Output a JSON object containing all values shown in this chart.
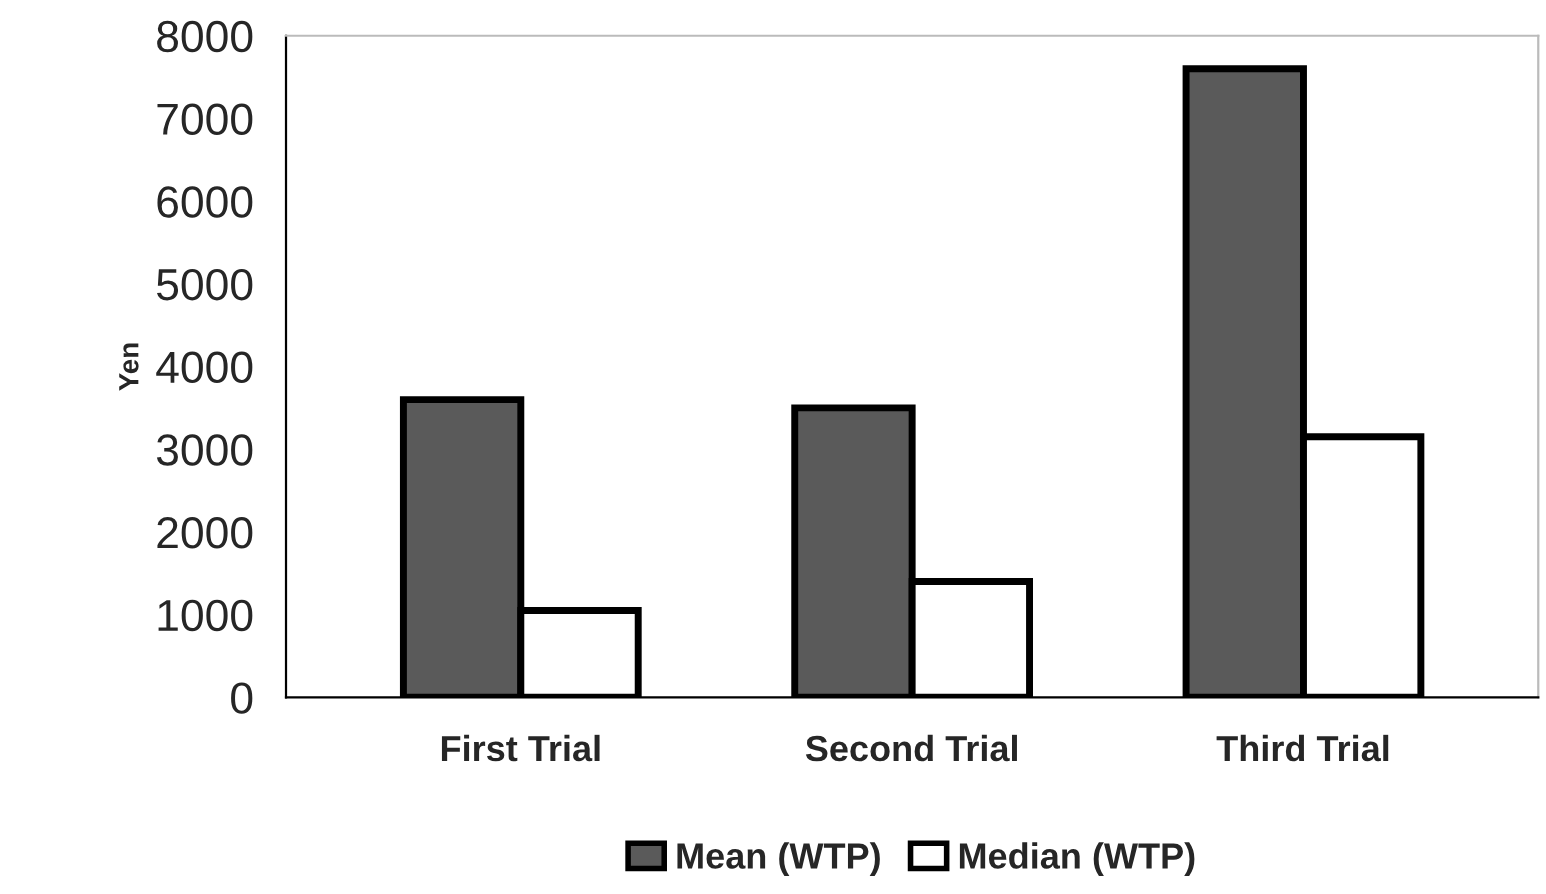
{
  "chart_data": {
    "type": "bar",
    "ylabel": "Yen",
    "categories": [
      "First Trial",
      "Second Trial",
      "Third Trial"
    ],
    "series": [
      {
        "name": "Mean (WTP)",
        "color": "#5a5a5a",
        "values": [
          3600,
          3500,
          7600
        ]
      },
      {
        "name": "Median (WTP)",
        "color": "#ffffff",
        "values": [
          1050,
          1400,
          3150
        ]
      }
    ],
    "ylim": [
      0,
      8000
    ],
    "yticks": [
      0,
      1000,
      2000,
      3000,
      4000,
      5000,
      6000,
      7000,
      8000
    ],
    "grid": false,
    "legend": "bottom"
  }
}
